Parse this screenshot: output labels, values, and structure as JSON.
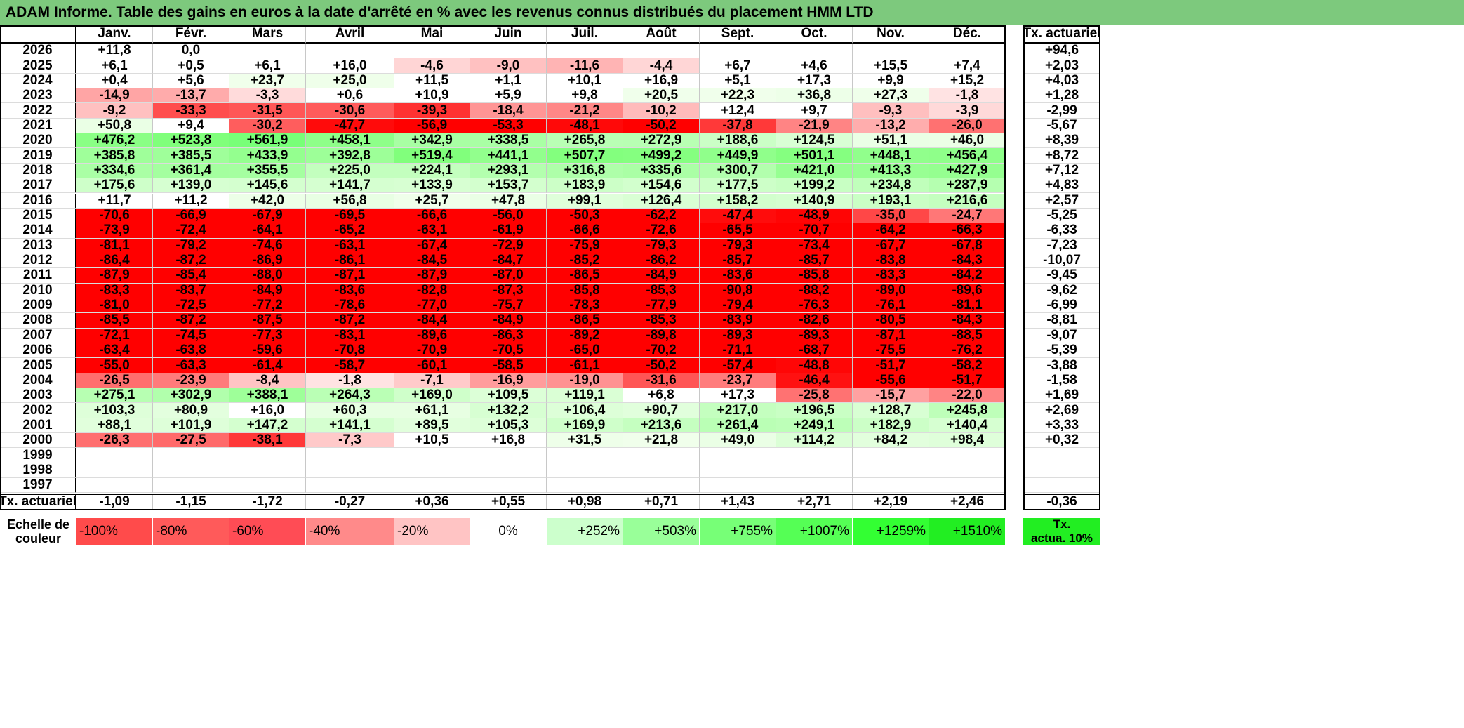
{
  "title": "ADAM Informe. Table des gains en euros à la date d'arrêté en % avec les revenus connus distribués du placement HMM LTD",
  "months": [
    "Janv.",
    "Févr.",
    "Mars",
    "Avril",
    "Mai",
    "Juin",
    "Juil.",
    "Août",
    "Sept.",
    "Oct.",
    "Nov.",
    "Déc."
  ],
  "rate_header": "Tx. actuariel",
  "rows": [
    {
      "year": "2026",
      "values": [
        "+11,8",
        "0,0",
        "",
        "",
        "",
        "",
        "",
        "",
        "",
        "",
        "",
        ""
      ],
      "rate": "+94,6"
    },
    {
      "year": "2025",
      "values": [
        "+6,1",
        "+0,5",
        "+6,1",
        "+16,0",
        "-4,6",
        "-9,0",
        "-11,6",
        "-4,4",
        "+6,7",
        "+4,6",
        "+15,5",
        "+7,4"
      ],
      "rate": "+2,03"
    },
    {
      "year": "2024",
      "values": [
        "+0,4",
        "+5,6",
        "+23,7",
        "+25,0",
        "+11,5",
        "+1,1",
        "+10,1",
        "+16,9",
        "+5,1",
        "+17,3",
        "+9,9",
        "+15,2"
      ],
      "rate": "+4,03"
    },
    {
      "year": "2023",
      "values": [
        "-14,9",
        "-13,7",
        "-3,3",
        "+0,6",
        "+10,9",
        "+5,9",
        "+9,8",
        "+20,5",
        "+22,3",
        "+36,8",
        "+27,3",
        "-1,8"
      ],
      "rate": "+1,28"
    },
    {
      "year": "2022",
      "values": [
        "-9,2",
        "-33,3",
        "-31,5",
        "-30,6",
        "-39,3",
        "-18,4",
        "-21,2",
        "-10,2",
        "+12,4",
        "+9,7",
        "-9,3",
        "-3,9"
      ],
      "rate": "-2,99"
    },
    {
      "year": "2021",
      "values": [
        "+50,8",
        "+9,4",
        "-30,2",
        "-47,7",
        "-56,9",
        "-53,3",
        "-48,1",
        "-50,2",
        "-37,8",
        "-21,9",
        "-13,2",
        "-26,0"
      ],
      "rate": "-5,67"
    },
    {
      "year": "2020",
      "values": [
        "+476,2",
        "+523,8",
        "+561,9",
        "+458,1",
        "+342,9",
        "+338,5",
        "+265,8",
        "+272,9",
        "+188,6",
        "+124,5",
        "+51,1",
        "+46,0"
      ],
      "rate": "+8,39"
    },
    {
      "year": "2019",
      "values": [
        "+385,8",
        "+385,5",
        "+433,9",
        "+392,8",
        "+519,4",
        "+441,1",
        "+507,7",
        "+499,2",
        "+449,9",
        "+501,1",
        "+448,1",
        "+456,4"
      ],
      "rate": "+8,72"
    },
    {
      "year": "2018",
      "values": [
        "+334,6",
        "+361,4",
        "+355,5",
        "+225,0",
        "+224,1",
        "+293,1",
        "+316,8",
        "+335,6",
        "+300,7",
        "+421,0",
        "+413,3",
        "+427,9"
      ],
      "rate": "+7,12"
    },
    {
      "year": "2017",
      "values": [
        "+175,6",
        "+139,0",
        "+145,6",
        "+141,7",
        "+133,9",
        "+153,7",
        "+183,9",
        "+154,6",
        "+177,5",
        "+199,2",
        "+234,8",
        "+287,9"
      ],
      "rate": "+4,83"
    },
    {
      "year": "2016",
      "values": [
        "+11,7",
        "+11,2",
        "+42,0",
        "+56,8",
        "+25,7",
        "+47,8",
        "+99,1",
        "+126,4",
        "+158,2",
        "+140,9",
        "+193,1",
        "+216,6"
      ],
      "rate": "+2,57"
    },
    {
      "year": "2015",
      "values": [
        "-70,6",
        "-66,9",
        "-67,9",
        "-69,5",
        "-66,6",
        "-56,0",
        "-50,3",
        "-62,2",
        "-47,4",
        "-48,9",
        "-35,0",
        "-24,7"
      ],
      "rate": "-5,25"
    },
    {
      "year": "2014",
      "values": [
        "-73,9",
        "-72,4",
        "-64,1",
        "-65,2",
        "-63,1",
        "-61,9",
        "-66,6",
        "-72,6",
        "-65,5",
        "-70,7",
        "-64,2",
        "-66,3"
      ],
      "rate": "-6,33"
    },
    {
      "year": "2013",
      "values": [
        "-81,1",
        "-79,2",
        "-74,6",
        "-63,1",
        "-67,4",
        "-72,9",
        "-75,9",
        "-79,3",
        "-79,3",
        "-73,4",
        "-67,7",
        "-67,8"
      ],
      "rate": "-7,23"
    },
    {
      "year": "2012",
      "values": [
        "-86,4",
        "-87,2",
        "-86,9",
        "-86,1",
        "-84,5",
        "-84,7",
        "-85,2",
        "-86,2",
        "-85,7",
        "-85,7",
        "-83,8",
        "-84,3"
      ],
      "rate": "-10,07"
    },
    {
      "year": "2011",
      "values": [
        "-87,9",
        "-85,4",
        "-88,0",
        "-87,1",
        "-87,9",
        "-87,0",
        "-86,5",
        "-84,9",
        "-83,6",
        "-85,8",
        "-83,3",
        "-84,2"
      ],
      "rate": "-9,45"
    },
    {
      "year": "2010",
      "values": [
        "-83,3",
        "-83,7",
        "-84,9",
        "-83,6",
        "-82,8",
        "-87,3",
        "-85,8",
        "-85,3",
        "-90,8",
        "-88,2",
        "-89,0",
        "-89,6"
      ],
      "rate": "-9,62"
    },
    {
      "year": "2009",
      "values": [
        "-81,0",
        "-72,5",
        "-77,2",
        "-78,6",
        "-77,0",
        "-75,7",
        "-78,3",
        "-77,9",
        "-79,4",
        "-76,3",
        "-76,1",
        "-81,1"
      ],
      "rate": "-6,99"
    },
    {
      "year": "2008",
      "values": [
        "-85,5",
        "-87,2",
        "-87,5",
        "-87,2",
        "-84,4",
        "-84,9",
        "-86,5",
        "-85,3",
        "-83,9",
        "-82,6",
        "-80,5",
        "-84,3"
      ],
      "rate": "-8,81"
    },
    {
      "year": "2007",
      "values": [
        "-72,1",
        "-74,5",
        "-77,3",
        "-83,1",
        "-89,6",
        "-86,3",
        "-89,2",
        "-89,8",
        "-89,3",
        "-89,3",
        "-87,1",
        "-88,5"
      ],
      "rate": "-9,07"
    },
    {
      "year": "2006",
      "values": [
        "-63,4",
        "-63,8",
        "-59,6",
        "-70,8",
        "-70,9",
        "-70,5",
        "-65,0",
        "-70,2",
        "-71,1",
        "-68,7",
        "-75,5",
        "-76,2"
      ],
      "rate": "-5,39"
    },
    {
      "year": "2005",
      "values": [
        "-55,0",
        "-63,3",
        "-61,4",
        "-58,7",
        "-60,1",
        "-58,5",
        "-61,1",
        "-50,2",
        "-57,4",
        "-48,8",
        "-51,7",
        "-58,2"
      ],
      "rate": "-3,88"
    },
    {
      "year": "2004",
      "values": [
        "-26,5",
        "-23,9",
        "-8,4",
        "-1,8",
        "-7,1",
        "-16,9",
        "-19,0",
        "-31,6",
        "-23,7",
        "-46,4",
        "-55,6",
        "-51,7"
      ],
      "rate": "-1,58"
    },
    {
      "year": "2003",
      "values": [
        "+275,1",
        "+302,9",
        "+388,1",
        "+264,3",
        "+169,0",
        "+109,5",
        "+119,1",
        "+6,8",
        "+17,3",
        "-25,8",
        "-15,7",
        "-22,0"
      ],
      "rate": "+1,69"
    },
    {
      "year": "2002",
      "values": [
        "+103,3",
        "+80,9",
        "+16,0",
        "+60,3",
        "+61,1",
        "+132,2",
        "+106,4",
        "+90,7",
        "+217,0",
        "+196,5",
        "+128,7",
        "+245,8"
      ],
      "rate": "+2,69"
    },
    {
      "year": "2001",
      "values": [
        "+88,1",
        "+101,9",
        "+147,2",
        "+141,1",
        "+89,5",
        "+105,3",
        "+169,9",
        "+213,6",
        "+261,4",
        "+249,1",
        "+182,9",
        "+140,4"
      ],
      "rate": "+3,33"
    },
    {
      "year": "2000",
      "values": [
        "-26,3",
        "-27,5",
        "-38,1",
        "-7,3",
        "+10,5",
        "+16,8",
        "+31,5",
        "+21,8",
        "+49,0",
        "+114,2",
        "+84,2",
        "+98,4"
      ],
      "rate": "+0,32"
    },
    {
      "year": "1999",
      "values": [
        "",
        "",
        "",
        "",
        "",
        "",
        "",
        "",
        "",
        "",
        "",
        ""
      ],
      "rate": ""
    },
    {
      "year": "1998",
      "values": [
        "",
        "",
        "",
        "",
        "",
        "",
        "",
        "",
        "",
        "",
        "",
        ""
      ],
      "rate": ""
    },
    {
      "year": "1997",
      "values": [
        "",
        "",
        "",
        "",
        "",
        "",
        "",
        "",
        "",
        "",
        "",
        ""
      ],
      "rate": ""
    }
  ],
  "footer": {
    "label": "Tx. actuariel",
    "values": [
      "-1,09",
      "-1,15",
      "-1,72",
      "-0,27",
      "+0,36",
      "+0,55",
      "+0,98",
      "+0,71",
      "+1,43",
      "+2,71",
      "+2,19",
      "+2,46"
    ],
    "rate": "-0,36"
  },
  "legend": {
    "label_line1": "Echelle de",
    "label_line2": "couleur",
    "items": [
      {
        "text": "-100%",
        "color": "#ff4b4b"
      },
      {
        "text": "-80%",
        "color": "#ff5a5a"
      },
      {
        "text": "-60%",
        "color": "#ff4c55"
      },
      {
        "text": "-40%",
        "color": "#ff8a8a"
      },
      {
        "text": "-20%",
        "color": "#ffc4c4"
      },
      {
        "text": "0%",
        "color": "#ffffff"
      },
      {
        "text": "+252%",
        "color": "#ccffcc"
      },
      {
        "text": "+503%",
        "color": "#99ff99"
      },
      {
        "text": "+755%",
        "color": "#77ff77"
      },
      {
        "text": "+1007%",
        "color": "#55ff55"
      },
      {
        "text": "+1259%",
        "color": "#33ff33"
      },
      {
        "text": "+1510%",
        "color": "#22ee22"
      }
    ],
    "rate_line1": "Tx.",
    "rate_line2": "actua. 10%",
    "rate_color": "#22ee22"
  },
  "colors": {
    "title_bg": "#7dc97d",
    "negative_max": "#ff0000",
    "positive_max": "#22ee22"
  }
}
